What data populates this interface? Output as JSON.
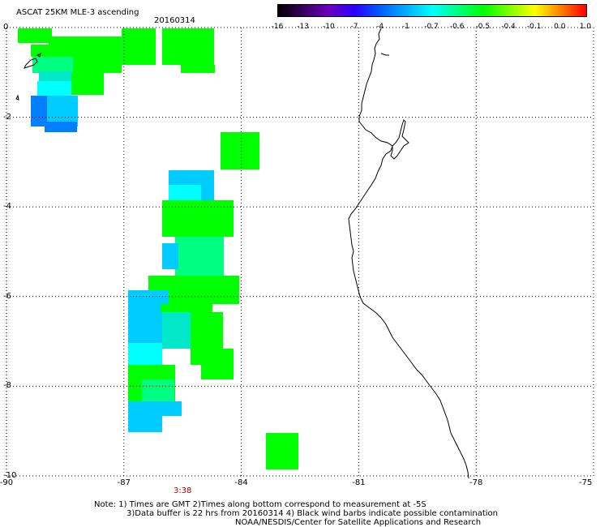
{
  "header": {
    "title": "ASCAT 25KM MLE-3 ascending",
    "date": "20160314"
  },
  "colorbar": {
    "labels": [
      "-16",
      "-13",
      "-10",
      "-7",
      "-4",
      "-1",
      "-0.7",
      "-0.6",
      "-0.5",
      "-0.4",
      "-0.1",
      "0.0",
      "1.0"
    ],
    "colors": [
      "#000000",
      "#3a0060",
      "#6a00c0",
      "#2a00ff",
      "#0060ff",
      "#00b0ff",
      "#00ffff",
      "#00ff80",
      "#00ff00",
      "#80ff00",
      "#ffff00",
      "#ff8000",
      "#ff0000"
    ]
  },
  "map": {
    "lat_labels": [
      "0",
      "-2",
      "-4",
      "-6",
      "-8",
      "-10"
    ],
    "lon_labels": [
      "-90",
      "-87",
      "-84",
      "-81",
      "-78",
      "-75"
    ],
    "lon_range": [
      -90,
      -75
    ],
    "lat_range": [
      -10,
      0
    ],
    "grid": true,
    "time_label": "3:38",
    "time_label_lon": -85.5,
    "coastline_color": "#000000",
    "cell_colors": {
      "green": "#00ff00",
      "light_green": "#00ff80",
      "cyan": "#00ffff",
      "teal": "#00e8c8",
      "sky_blue": "#00ccff",
      "blue": "#0080ff"
    }
  },
  "notes": {
    "line1": "Note: 1) Times are GMT 2)Times along bottom correspond to measurement at -5S",
    "line2": "3)Data buffer is 22 hrs from 20160314 4) Black wind barbs indicate possible contamination",
    "line3": "NOAA/NESDIS/Center for Satellite Applications and Research"
  }
}
